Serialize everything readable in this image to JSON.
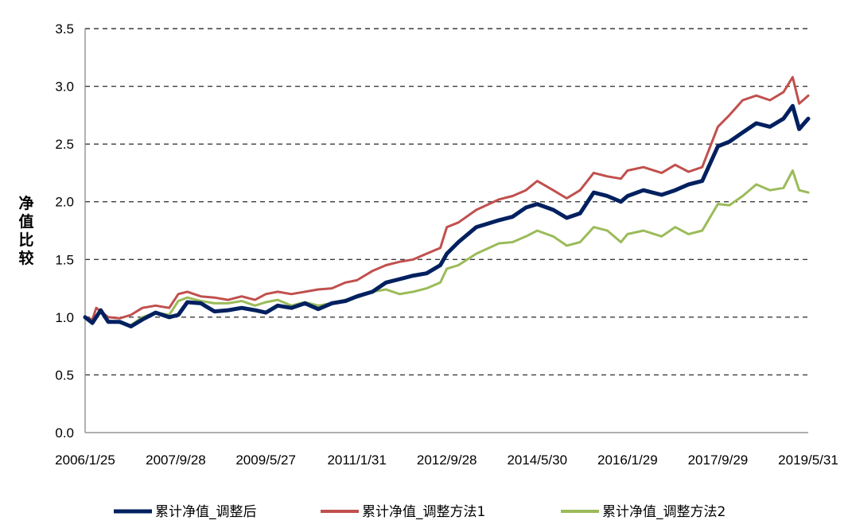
{
  "chart_data": {
    "type": "line",
    "title": "",
    "xlabel": "",
    "ylabel": "净值比较",
    "ylim": [
      0,
      3.5
    ],
    "y_ticks": [
      "0.0",
      "0.5",
      "1.0",
      "1.5",
      "2.0",
      "2.5",
      "3.0",
      "3.5"
    ],
    "x_tick_labels": [
      "2006/1/25",
      "2007/9/28",
      "2009/5/27",
      "2011/1/31",
      "2012/9/28",
      "2014/5/30",
      "2016/1/29",
      "2017/9/29",
      "2019/5/31"
    ],
    "x_range": [
      "2006/1/25",
      "2019/5/31"
    ],
    "grid": "horizontal-dashed",
    "legend_position": "bottom",
    "series": [
      {
        "name": "累计净值_调整后",
        "color": "#002060",
        "points": [
          [
            "2006/1/25",
            1.0
          ],
          [
            "2006/3/15",
            0.95
          ],
          [
            "2006/5/10",
            1.06
          ],
          [
            "2006/6/30",
            0.96
          ],
          [
            "2006/9/15",
            0.96
          ],
          [
            "2006/11/30",
            0.92
          ],
          [
            "2007/2/15",
            0.98
          ],
          [
            "2007/5/15",
            1.04
          ],
          [
            "2007/8/15",
            1.0
          ],
          [
            "2007/10/15",
            1.02
          ],
          [
            "2007/12/15",
            1.13
          ],
          [
            "2008/3/15",
            1.12
          ],
          [
            "2008/6/15",
            1.05
          ],
          [
            "2008/9/15",
            1.06
          ],
          [
            "2008/12/15",
            1.08
          ],
          [
            "2009/3/15",
            1.06
          ],
          [
            "2009/5/27",
            1.04
          ],
          [
            "2009/8/15",
            1.1
          ],
          [
            "2009/11/15",
            1.08
          ],
          [
            "2010/2/15",
            1.12
          ],
          [
            "2010/5/15",
            1.07
          ],
          [
            "2010/8/15",
            1.12
          ],
          [
            "2010/11/15",
            1.14
          ],
          [
            "2011/1/31",
            1.18
          ],
          [
            "2011/5/15",
            1.22
          ],
          [
            "2011/8/15",
            1.3
          ],
          [
            "2011/11/15",
            1.33
          ],
          [
            "2012/2/15",
            1.36
          ],
          [
            "2012/5/15",
            1.38
          ],
          [
            "2012/8/15",
            1.45
          ],
          [
            "2012/9/28",
            1.55
          ],
          [
            "2012/12/15",
            1.65
          ],
          [
            "2013/4/15",
            1.78
          ],
          [
            "2013/9/15",
            1.84
          ],
          [
            "2013/12/15",
            1.87
          ],
          [
            "2014/3/15",
            1.95
          ],
          [
            "2014/5/30",
            1.98
          ],
          [
            "2014/9/15",
            1.93
          ],
          [
            "2014/12/15",
            1.86
          ],
          [
            "2015/3/15",
            1.9
          ],
          [
            "2015/6/15",
            2.08
          ],
          [
            "2015/9/15",
            2.05
          ],
          [
            "2015/12/15",
            2.0
          ],
          [
            "2016/1/29",
            2.05
          ],
          [
            "2016/5/15",
            2.1
          ],
          [
            "2016/9/15",
            2.06
          ],
          [
            "2016/12/15",
            2.1
          ],
          [
            "2017/3/15",
            2.15
          ],
          [
            "2017/6/15",
            2.18
          ],
          [
            "2017/9/29",
            2.48
          ],
          [
            "2017/12/15",
            2.52
          ],
          [
            "2018/3/15",
            2.6
          ],
          [
            "2018/6/15",
            2.68
          ],
          [
            "2018/9/15",
            2.65
          ],
          [
            "2018/12/15",
            2.72
          ],
          [
            "2019/2/15",
            2.83
          ],
          [
            "2019/3/31",
            2.63
          ],
          [
            "2019/5/31",
            2.72
          ]
        ]
      },
      {
        "name": "累计净值_调整方法1",
        "color": "#C0504D",
        "points": [
          [
            "2006/1/25",
            1.0
          ],
          [
            "2006/3/15",
            0.98
          ],
          [
            "2006/4/10",
            1.08
          ],
          [
            "2006/6/30",
            1.0
          ],
          [
            "2006/9/15",
            0.99
          ],
          [
            "2006/11/30",
            1.02
          ],
          [
            "2007/2/15",
            1.08
          ],
          [
            "2007/5/15",
            1.1
          ],
          [
            "2007/8/15",
            1.08
          ],
          [
            "2007/10/15",
            1.2
          ],
          [
            "2007/12/15",
            1.22
          ],
          [
            "2008/3/15",
            1.18
          ],
          [
            "2008/6/15",
            1.17
          ],
          [
            "2008/9/15",
            1.15
          ],
          [
            "2008/12/15",
            1.18
          ],
          [
            "2009/3/15",
            1.15
          ],
          [
            "2009/5/27",
            1.2
          ],
          [
            "2009/8/15",
            1.22
          ],
          [
            "2009/11/15",
            1.2
          ],
          [
            "2010/2/15",
            1.22
          ],
          [
            "2010/5/15",
            1.24
          ],
          [
            "2010/8/15",
            1.25
          ],
          [
            "2010/11/15",
            1.3
          ],
          [
            "2011/1/31",
            1.32
          ],
          [
            "2011/5/15",
            1.4
          ],
          [
            "2011/8/15",
            1.45
          ],
          [
            "2011/11/15",
            1.48
          ],
          [
            "2012/2/15",
            1.5
          ],
          [
            "2012/5/15",
            1.55
          ],
          [
            "2012/8/15",
            1.6
          ],
          [
            "2012/9/28",
            1.78
          ],
          [
            "2012/12/15",
            1.82
          ],
          [
            "2013/4/15",
            1.93
          ],
          [
            "2013/9/15",
            2.02
          ],
          [
            "2013/12/15",
            2.05
          ],
          [
            "2014/3/15",
            2.1
          ],
          [
            "2014/5/30",
            2.18
          ],
          [
            "2014/9/15",
            2.1
          ],
          [
            "2014/12/15",
            2.03
          ],
          [
            "2015/3/15",
            2.1
          ],
          [
            "2015/6/15",
            2.25
          ],
          [
            "2015/9/15",
            2.22
          ],
          [
            "2015/12/15",
            2.2
          ],
          [
            "2016/1/29",
            2.27
          ],
          [
            "2016/5/15",
            2.3
          ],
          [
            "2016/9/15",
            2.25
          ],
          [
            "2016/12/15",
            2.32
          ],
          [
            "2017/3/15",
            2.26
          ],
          [
            "2017/6/15",
            2.3
          ],
          [
            "2017/9/29",
            2.65
          ],
          [
            "2017/12/15",
            2.75
          ],
          [
            "2018/3/15",
            2.88
          ],
          [
            "2018/6/15",
            2.92
          ],
          [
            "2018/9/15",
            2.88
          ],
          [
            "2018/12/15",
            2.95
          ],
          [
            "2019/2/15",
            3.08
          ],
          [
            "2019/3/31",
            2.85
          ],
          [
            "2019/5/31",
            2.92
          ]
        ]
      },
      {
        "name": "累计净值_调整方法2",
        "color": "#9BBB59",
        "points": [
          [
            "2006/1/25",
            1.0
          ],
          [
            "2006/3/15",
            0.94
          ],
          [
            "2006/5/10",
            1.05
          ],
          [
            "2006/6/30",
            0.97
          ],
          [
            "2006/9/15",
            0.95
          ],
          [
            "2006/11/30",
            0.93
          ],
          [
            "2007/2/15",
            1.0
          ],
          [
            "2007/5/15",
            1.04
          ],
          [
            "2007/8/15",
            1.02
          ],
          [
            "2007/10/15",
            1.14
          ],
          [
            "2007/12/15",
            1.17
          ],
          [
            "2008/3/15",
            1.14
          ],
          [
            "2008/6/15",
            1.12
          ],
          [
            "2008/9/15",
            1.12
          ],
          [
            "2008/12/15",
            1.14
          ],
          [
            "2009/3/15",
            1.1
          ],
          [
            "2009/5/27",
            1.13
          ],
          [
            "2009/8/15",
            1.15
          ],
          [
            "2009/11/15",
            1.1
          ],
          [
            "2010/2/15",
            1.13
          ],
          [
            "2010/5/15",
            1.1
          ],
          [
            "2010/8/15",
            1.12
          ],
          [
            "2010/11/15",
            1.15
          ],
          [
            "2011/1/31",
            1.17
          ],
          [
            "2011/5/15",
            1.22
          ],
          [
            "2011/8/15",
            1.24
          ],
          [
            "2011/11/15",
            1.2
          ],
          [
            "2012/2/15",
            1.22
          ],
          [
            "2012/5/15",
            1.25
          ],
          [
            "2012/8/15",
            1.3
          ],
          [
            "2012/9/28",
            1.42
          ],
          [
            "2012/12/15",
            1.45
          ],
          [
            "2013/4/15",
            1.55
          ],
          [
            "2013/9/15",
            1.64
          ],
          [
            "2013/12/15",
            1.65
          ],
          [
            "2014/3/15",
            1.7
          ],
          [
            "2014/5/30",
            1.75
          ],
          [
            "2014/9/15",
            1.7
          ],
          [
            "2014/12/15",
            1.62
          ],
          [
            "2015/3/15",
            1.65
          ],
          [
            "2015/6/15",
            1.78
          ],
          [
            "2015/9/15",
            1.75
          ],
          [
            "2015/12/15",
            1.65
          ],
          [
            "2016/1/29",
            1.72
          ],
          [
            "2016/5/15",
            1.75
          ],
          [
            "2016/9/15",
            1.7
          ],
          [
            "2016/12/15",
            1.78
          ],
          [
            "2017/3/15",
            1.72
          ],
          [
            "2017/6/15",
            1.75
          ],
          [
            "2017/9/29",
            1.98
          ],
          [
            "2017/12/15",
            1.97
          ],
          [
            "2018/3/15",
            2.05
          ],
          [
            "2018/6/15",
            2.15
          ],
          [
            "2018/9/15",
            2.1
          ],
          [
            "2018/12/15",
            2.12
          ],
          [
            "2019/2/15",
            2.27
          ],
          [
            "2019/3/31",
            2.1
          ],
          [
            "2019/5/31",
            2.08
          ]
        ]
      }
    ]
  }
}
